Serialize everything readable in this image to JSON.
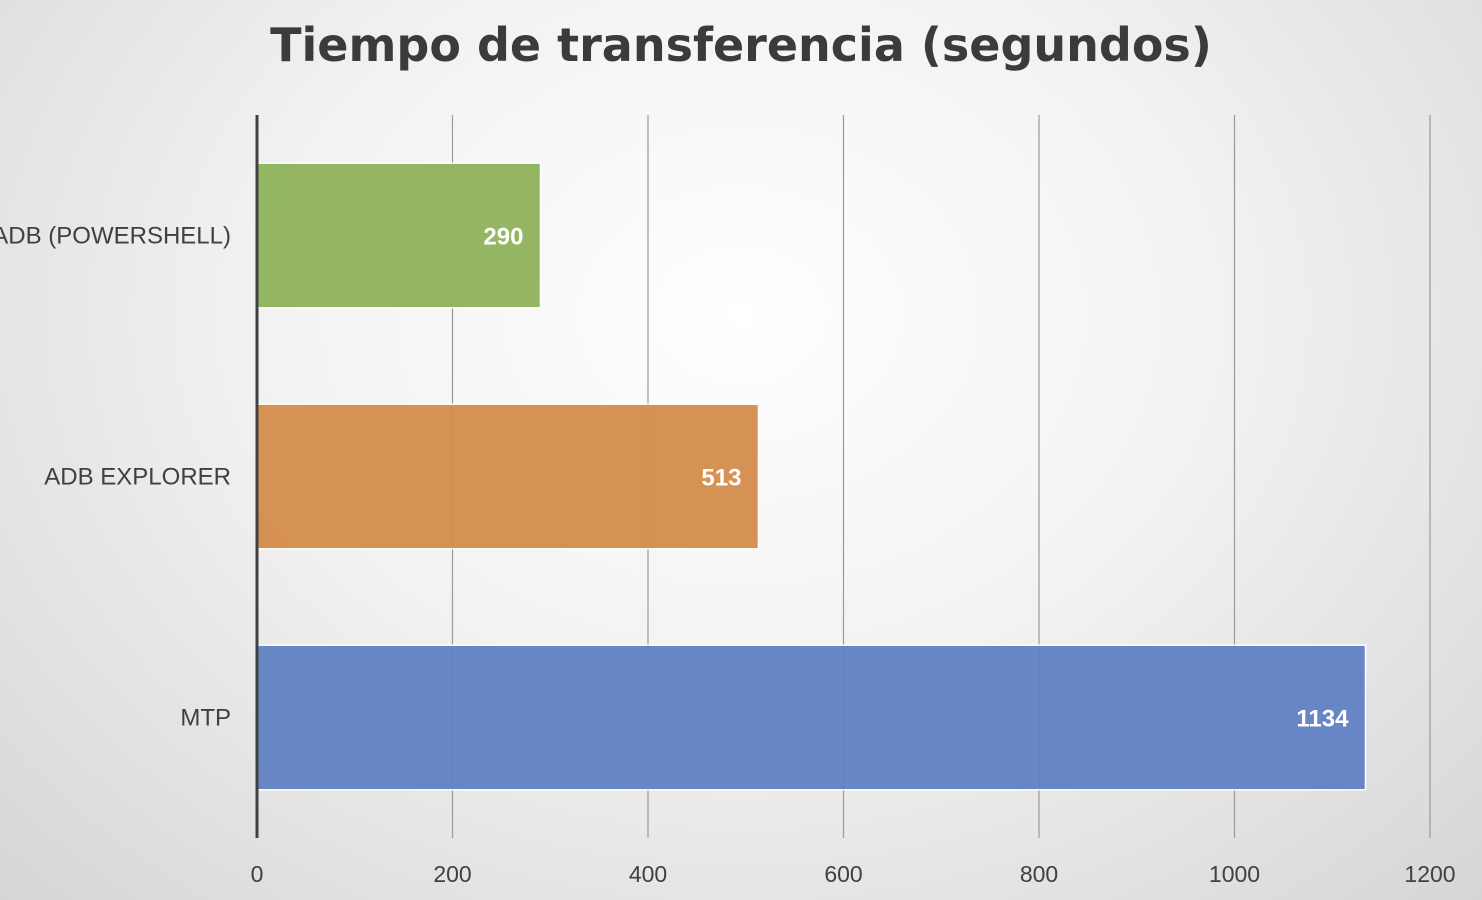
{
  "chart_data": {
    "type": "bar",
    "orientation": "horizontal",
    "title": "Tiempo de transferencia (segundos)",
    "categories": [
      "ADB (POWERSHELL)",
      "ADB EXPLORER",
      "MTP"
    ],
    "values": [
      290,
      513,
      1134
    ],
    "colors": [
      "#8fb35d",
      "#d58c4c",
      "#6282c5"
    ],
    "xlim": [
      0,
      1200
    ],
    "xticks": [
      "0",
      "200",
      "400",
      "600",
      "800",
      "1000",
      "1200"
    ],
    "grid": true,
    "data_labels": [
      "290",
      "513",
      "1134"
    ]
  }
}
